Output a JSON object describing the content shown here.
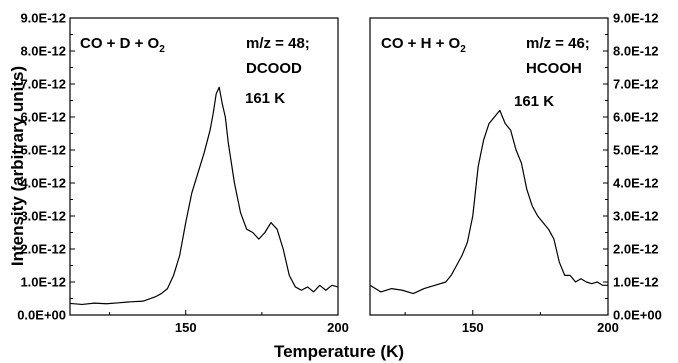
{
  "chart_data": {
    "type": "line",
    "xlabel": "Temperature (K)",
    "ylabel": "Intensity (arbitrary units)",
    "y_tick_labels": [
      "0.0E+00",
      "1.0E-12",
      "2.0E-12",
      "3.0E-12",
      "4.0E-12",
      "5.0E-12",
      "6.0E-12",
      "7.0E-12",
      "8.0E-12",
      "9.0E-12"
    ],
    "ylim": [
      0,
      9e-12
    ],
    "panels": [
      {
        "id": "left",
        "xlim": [
          112,
          200
        ],
        "x_ticks": [
          150,
          200
        ],
        "x_tick_labels": [
          "150",
          "200"
        ],
        "annotations": {
          "reaction": "CO + D + O",
          "reaction_sub": "2",
          "mz": "m/z = 48;",
          "species": "DCOOD",
          "peak_label": "161 K"
        },
        "peak_temperature_K": 161,
        "series": [
          {
            "x": [
              112,
              116,
              120,
              124,
              128,
              132,
              136,
              140,
              142,
              144,
              146,
              148,
              150,
              152,
              154,
              156,
              158,
              159,
              160,
              161,
              162,
              163,
              164,
              166,
              168,
              170,
              172,
              174,
              176,
              178,
              180,
              182,
              184,
              186,
              188,
              190,
              192,
              194,
              196,
              198,
              200
            ],
            "y": [
              3.5e-13,
              3.2e-13,
              3.6e-13,
              3.4e-13,
              3.7e-13,
              4e-13,
              4.2e-13,
              5.5e-13,
              6.5e-13,
              8e-13,
              1.2e-12,
              1.8e-12,
              2.8e-12,
              3.7e-12,
              4.3e-12,
              4.9e-12,
              5.6e-12,
              6.1e-12,
              6.7e-12,
              6.9e-12,
              6.4e-12,
              6e-12,
              5.2e-12,
              4e-12,
              3.1e-12,
              2.6e-12,
              2.5e-12,
              2.3e-12,
              2.5e-12,
              2.8e-12,
              2.6e-12,
              2e-12,
              1.2e-12,
              8.5e-13,
              7.5e-13,
              8.5e-13,
              7e-13,
              9e-13,
              7.5e-13,
              9e-13,
              8.5e-13
            ]
          }
        ]
      },
      {
        "id": "right",
        "xlim": [
          112,
          200
        ],
        "x_ticks": [
          150,
          200
        ],
        "x_tick_labels": [
          "150",
          "200"
        ],
        "annotations": {
          "reaction": "CO + H + O",
          "reaction_sub": "2",
          "mz": "m/z = 46;",
          "species": "HCOOH",
          "peak_label": "161 K"
        },
        "peak_temperature_K": 161,
        "series": [
          {
            "x": [
              112,
              116,
              120,
              124,
              128,
              132,
              136,
              140,
              142,
              144,
              146,
              148,
              150,
              152,
              154,
              156,
              158,
              160,
              162,
              164,
              166,
              168,
              170,
              172,
              174,
              176,
              178,
              180,
              182,
              184,
              186,
              188,
              190,
              192,
              194,
              196,
              198,
              200
            ],
            "y": [
              9e-13,
              7e-13,
              8e-13,
              7.5e-13,
              6.5e-13,
              8e-13,
              9e-13,
              1e-12,
              1.2e-12,
              1.5e-12,
              1.8e-12,
              2.2e-12,
              3e-12,
              4.5e-12,
              5.3e-12,
              5.8e-12,
              6e-12,
              6.2e-12,
              5.8e-12,
              5.6e-12,
              5e-12,
              4.6e-12,
              3.8e-12,
              3.3e-12,
              3e-12,
              2.8e-12,
              2.6e-12,
              2.3e-12,
              1.6e-12,
              1.2e-12,
              1.2e-12,
              1e-12,
              1.1e-12,
              1e-12,
              9.5e-13,
              1e-12,
              9e-13,
              9e-13
            ]
          }
        ]
      }
    ]
  }
}
